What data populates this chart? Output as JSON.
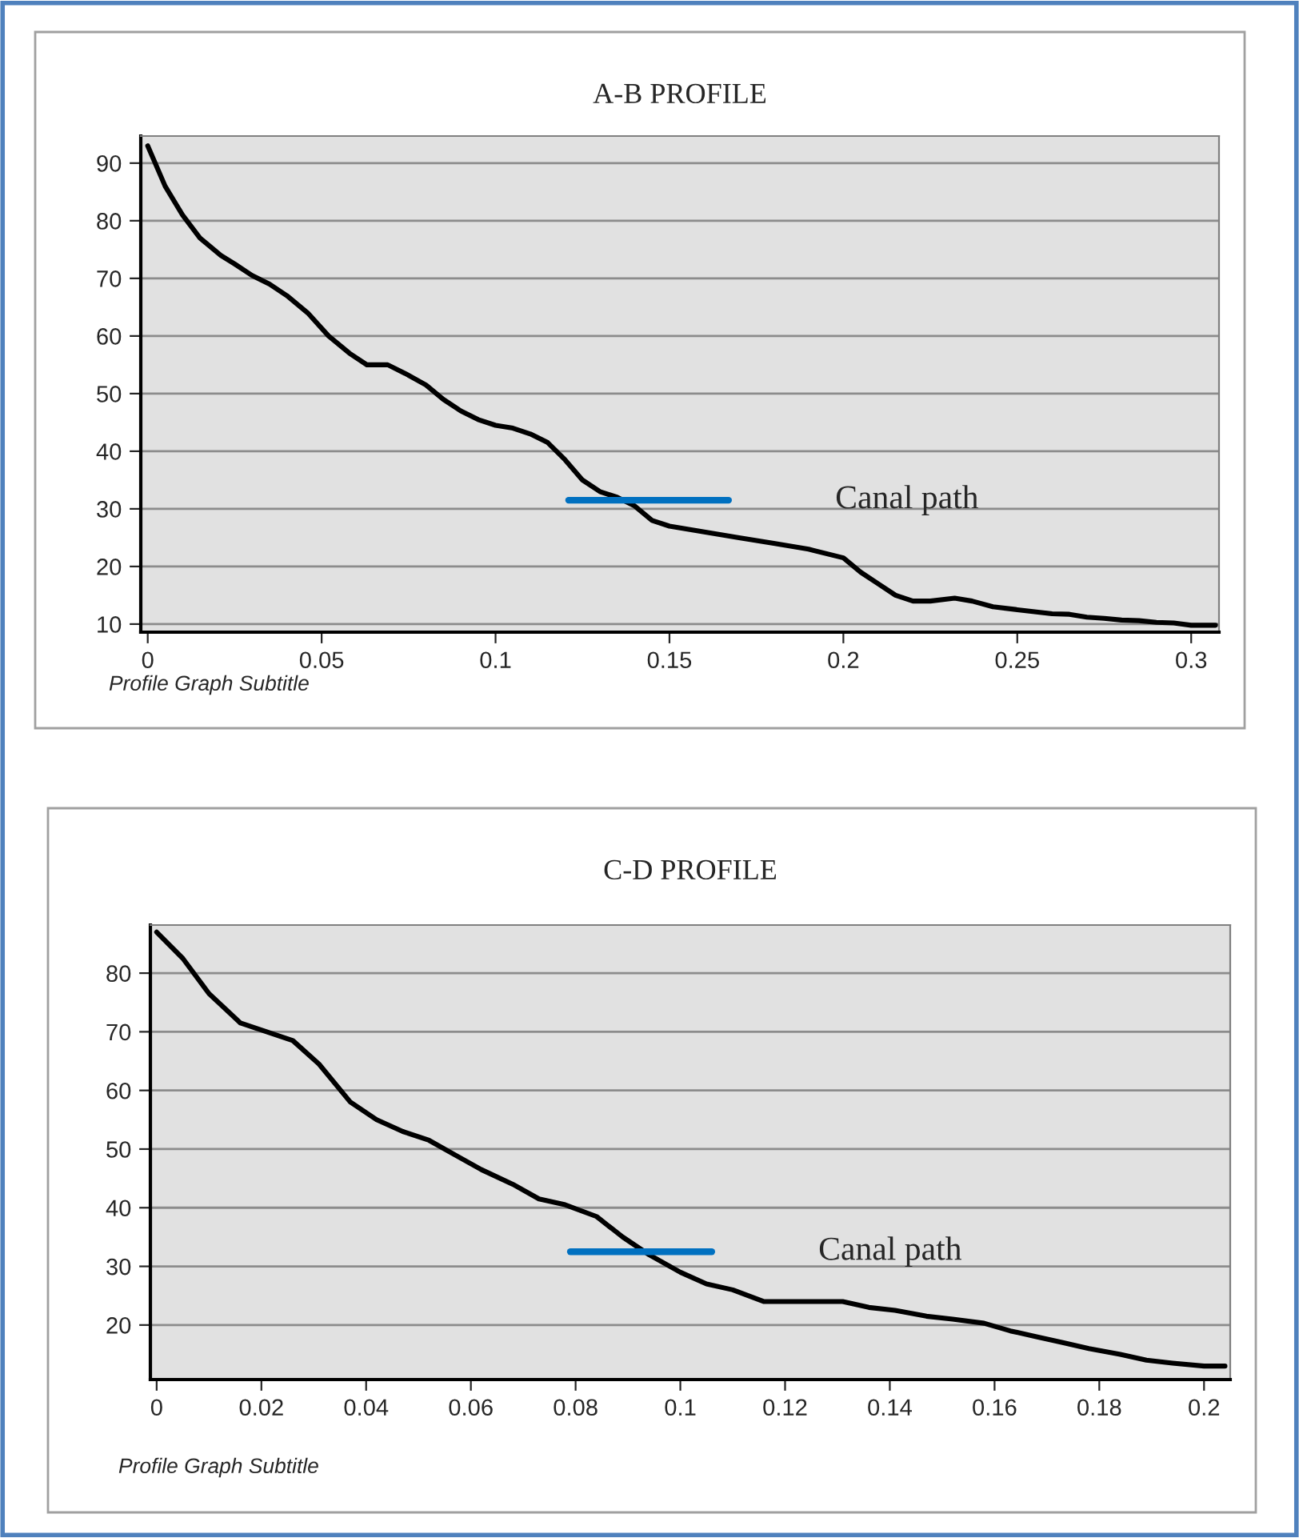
{
  "chart_data": [
    {
      "type": "line",
      "title": "A-B PROFILE",
      "subtitle": "Profile Graph Subtitle",
      "xlim": [
        -0.002,
        0.308
      ],
      "ylim": [
        8.6,
        94.7
      ],
      "xticks": [
        0,
        0.05,
        0.1,
        0.15,
        0.2,
        0.25,
        0.3
      ],
      "yticks": [
        10,
        20,
        30,
        40,
        50,
        60,
        70,
        80,
        90
      ],
      "grid": "y",
      "legend": false,
      "series": [
        {
          "color": "#000000",
          "x": [
            0,
            0.005,
            0.01,
            0.015,
            0.021,
            0.025,
            0.03,
            0.035,
            0.04,
            0.046,
            0.052,
            0.058,
            0.063,
            0.069,
            0.074,
            0.08,
            0.085,
            0.09,
            0.095,
            0.1,
            0.105,
            0.11,
            0.115,
            0.12,
            0.125,
            0.13,
            0.135,
            0.14,
            0.145,
            0.15,
            0.16,
            0.17,
            0.18,
            0.19,
            0.2,
            0.205,
            0.21,
            0.215,
            0.22,
            0.225,
            0.232,
            0.237,
            0.243,
            0.25,
            0.26,
            0.265,
            0.27,
            0.275,
            0.28,
            0.285,
            0.29,
            0.295,
            0.3,
            0.307
          ],
          "values": [
            93,
            86,
            81,
            77,
            74,
            72.5,
            70.5,
            69,
            67,
            64,
            60,
            57,
            55,
            55,
            53.5,
            51.5,
            49,
            47,
            45.5,
            44.5,
            44,
            43,
            41.5,
            38.5,
            35,
            33,
            32,
            30.5,
            28,
            27,
            26,
            25,
            24,
            23,
            21.5,
            19,
            17,
            15,
            14,
            14,
            14.5,
            14,
            13,
            12.5,
            11.8,
            11.7,
            11.2,
            11,
            10.7,
            10.6,
            10.3,
            10.2,
            9.8,
            9.8
          ]
        },
        {
          "name": "Canal path",
          "color": "#0070c0",
          "x": [
            0.121,
            0.167
          ],
          "values": [
            31.5,
            31.5
          ]
        }
      ]
    },
    {
      "type": "line",
      "title": "C-D PROFILE",
      "subtitle": "Profile Graph Subtitle",
      "xlim": [
        -0.0012,
        0.205
      ],
      "ylim": [
        10.7,
        88.2
      ],
      "xticks": [
        0,
        0.02,
        0.04,
        0.06,
        0.08,
        0.1,
        0.12,
        0.14,
        0.16,
        0.18,
        0.2
      ],
      "yticks": [
        20,
        30,
        40,
        50,
        60,
        70,
        80
      ],
      "grid": "y",
      "legend": false,
      "series": [
        {
          "color": "#000000",
          "x": [
            0,
            0.005,
            0.01,
            0.016,
            0.021,
            0.026,
            0.031,
            0.037,
            0.042,
            0.047,
            0.052,
            0.057,
            0.062,
            0.068,
            0.073,
            0.078,
            0.084,
            0.089,
            0.094,
            0.1,
            0.105,
            0.11,
            0.116,
            0.121,
            0.126,
            0.131,
            0.136,
            0.141,
            0.147,
            0.152,
            0.158,
            0.163,
            0.168,
            0.173,
            0.178,
            0.184,
            0.189,
            0.194,
            0.2,
            0.204
          ],
          "values": [
            87,
            82.5,
            76.5,
            71.5,
            70,
            68.5,
            64.5,
            58,
            55,
            53,
            51.5,
            49,
            46.5,
            44,
            41.5,
            40.5,
            38.5,
            35,
            32,
            29,
            27,
            26,
            24,
            24,
            24,
            24,
            23,
            22.5,
            21.5,
            21,
            20.3,
            19,
            18,
            17,
            16,
            15,
            14,
            13.5,
            13,
            13
          ]
        },
        {
          "name": "Canal path",
          "color": "#0070c0",
          "x": [
            0.079,
            0.106
          ],
          "values": [
            32.5,
            32.5
          ]
        }
      ]
    }
  ]
}
